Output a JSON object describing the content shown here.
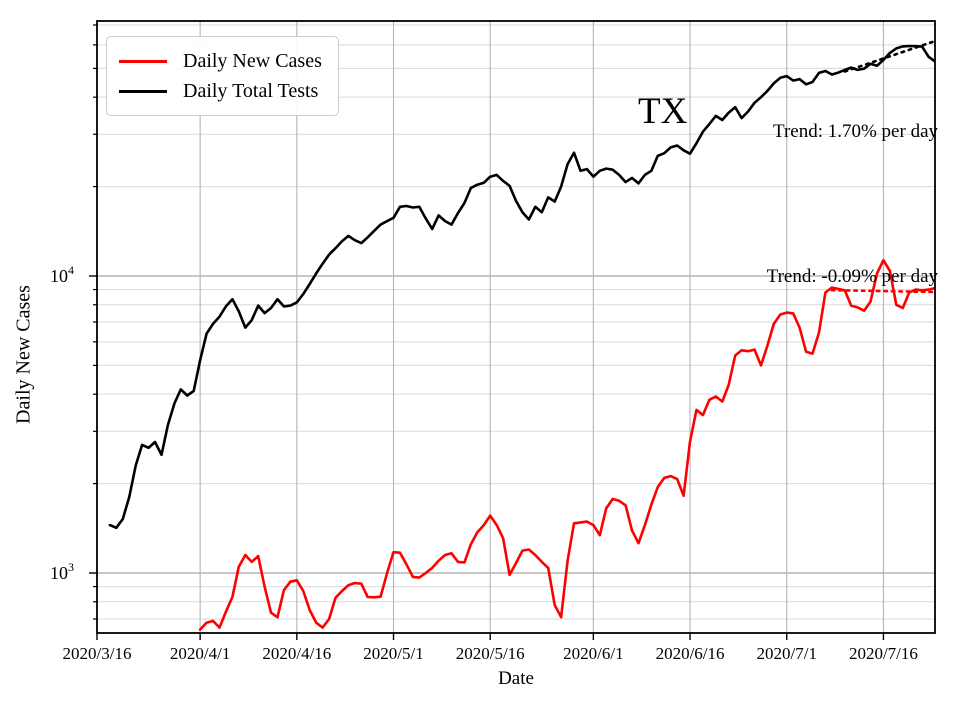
{
  "annotations": {
    "state_label": "TX",
    "tests_trend_label": "Trend: 1.70% per day",
    "cases_trend_label": "Trend: -0.09% per day"
  },
  "chart_data": {
    "type": "line",
    "title": "",
    "xlabel": "Date",
    "ylabel": "Daily New Cases",
    "grid": true,
    "legend_position": "upper left",
    "x_axis": {
      "min": "2020/3/16",
      "max": "2020/7/24",
      "ticks": [
        "2020/3/16",
        "2020/4/1",
        "2020/4/16",
        "2020/5/1",
        "2020/5/16",
        "2020/6/1",
        "2020/6/16",
        "2020/7/1",
        "2020/7/16"
      ]
    },
    "y_axis": {
      "scale": "log",
      "min": 628,
      "max": 72200,
      "major_ticks": [
        {
          "value": 1000,
          "base": "10",
          "exp": "3"
        },
        {
          "value": 10000,
          "base": "10",
          "exp": "4"
        }
      ]
    },
    "series": [
      {
        "name": "Daily New Cases",
        "color": "#ff0000",
        "line_style": "solid",
        "points": [
          [
            "2020/4/1",
            645
          ],
          [
            "2020/4/2",
            680
          ],
          [
            "2020/4/3",
            690
          ],
          [
            "2020/4/4",
            655
          ],
          [
            "2020/4/5",
            740
          ],
          [
            "2020/4/6",
            830
          ],
          [
            "2020/4/7",
            1050
          ],
          [
            "2020/4/8",
            1150
          ],
          [
            "2020/4/9",
            1090
          ],
          [
            "2020/4/10",
            1140
          ],
          [
            "2020/4/11",
            900
          ],
          [
            "2020/4/12",
            735
          ],
          [
            "2020/4/13",
            710
          ],
          [
            "2020/4/14",
            875
          ],
          [
            "2020/4/15",
            935
          ],
          [
            "2020/4/16",
            945
          ],
          [
            "2020/4/17",
            870
          ],
          [
            "2020/4/18",
            750
          ],
          [
            "2020/4/19",
            680
          ],
          [
            "2020/4/20",
            655
          ],
          [
            "2020/4/21",
            700
          ],
          [
            "2020/4/22",
            825
          ],
          [
            "2020/4/23",
            870
          ],
          [
            "2020/4/24",
            910
          ],
          [
            "2020/4/25",
            925
          ],
          [
            "2020/4/26",
            920
          ],
          [
            "2020/4/27",
            830
          ],
          [
            "2020/4/28",
            828
          ],
          [
            "2020/4/29",
            832
          ],
          [
            "2020/4/30",
            1000
          ],
          [
            "2020/5/1",
            1175
          ],
          [
            "2020/5/2",
            1170
          ],
          [
            "2020/5/3",
            1070
          ],
          [
            "2020/5/4",
            970
          ],
          [
            "2020/5/5",
            965
          ],
          [
            "2020/5/6",
            1000
          ],
          [
            "2020/5/7",
            1040
          ],
          [
            "2020/5/8",
            1100
          ],
          [
            "2020/5/9",
            1150
          ],
          [
            "2020/5/10",
            1165
          ],
          [
            "2020/5/11",
            1090
          ],
          [
            "2020/5/12",
            1085
          ],
          [
            "2020/5/13",
            1250
          ],
          [
            "2020/5/14",
            1370
          ],
          [
            "2020/5/15",
            1450
          ],
          [
            "2020/5/16",
            1560
          ],
          [
            "2020/5/17",
            1450
          ],
          [
            "2020/5/18",
            1310
          ],
          [
            "2020/5/19",
            985
          ],
          [
            "2020/5/20",
            1080
          ],
          [
            "2020/5/21",
            1190
          ],
          [
            "2020/5/22",
            1200
          ],
          [
            "2020/5/23",
            1150
          ],
          [
            "2020/5/24",
            1090
          ],
          [
            "2020/5/25",
            1040
          ],
          [
            "2020/5/26",
            780
          ],
          [
            "2020/5/27",
            710
          ],
          [
            "2020/5/28",
            1100
          ],
          [
            "2020/5/29",
            1470
          ],
          [
            "2020/5/30",
            1480
          ],
          [
            "2020/5/31",
            1490
          ],
          [
            "2020/6/1",
            1450
          ],
          [
            "2020/6/2",
            1340
          ],
          [
            "2020/6/3",
            1650
          ],
          [
            "2020/6/4",
            1775
          ],
          [
            "2020/6/5",
            1750
          ],
          [
            "2020/6/6",
            1690
          ],
          [
            "2020/6/7",
            1390
          ],
          [
            "2020/6/8",
            1260
          ],
          [
            "2020/6/9",
            1450
          ],
          [
            "2020/6/10",
            1700
          ],
          [
            "2020/6/11",
            1950
          ],
          [
            "2020/6/12",
            2090
          ],
          [
            "2020/6/13",
            2120
          ],
          [
            "2020/6/14",
            2070
          ],
          [
            "2020/6/15",
            1820
          ],
          [
            "2020/6/16",
            2770
          ],
          [
            "2020/6/17",
            3540
          ],
          [
            "2020/6/18",
            3400
          ],
          [
            "2020/6/19",
            3830
          ],
          [
            "2020/6/20",
            3930
          ],
          [
            "2020/6/21",
            3780
          ],
          [
            "2020/6/22",
            4300
          ],
          [
            "2020/6/23",
            5400
          ],
          [
            "2020/6/24",
            5620
          ],
          [
            "2020/6/25",
            5580
          ],
          [
            "2020/6/26",
            5650
          ],
          [
            "2020/6/27",
            5000
          ],
          [
            "2020/6/28",
            5830
          ],
          [
            "2020/6/29",
            6900
          ],
          [
            "2020/6/30",
            7420
          ],
          [
            "2020/7/1",
            7530
          ],
          [
            "2020/7/2",
            7480
          ],
          [
            "2020/7/3",
            6700
          ],
          [
            "2020/7/4",
            5560
          ],
          [
            "2020/7/5",
            5480
          ],
          [
            "2020/7/6",
            6450
          ],
          [
            "2020/7/7",
            8800
          ],
          [
            "2020/7/8",
            9140
          ],
          [
            "2020/7/9",
            9050
          ],
          [
            "2020/7/10",
            8940
          ],
          [
            "2020/7/11",
            7950
          ],
          [
            "2020/7/12",
            7840
          ],
          [
            "2020/7/13",
            7640
          ],
          [
            "2020/7/14",
            8200
          ],
          [
            "2020/7/15",
            10200
          ],
          [
            "2020/7/16",
            11300
          ],
          [
            "2020/7/17",
            10400
          ],
          [
            "2020/7/18",
            8000
          ],
          [
            "2020/7/19",
            7800
          ],
          [
            "2020/7/20",
            8800
          ],
          [
            "2020/7/21",
            9000
          ],
          [
            "2020/7/22",
            8950
          ],
          [
            "2020/7/23",
            9000
          ],
          [
            "2020/7/24",
            9100
          ]
        ]
      },
      {
        "name": "Daily Total Tests",
        "color": "#000000",
        "line_style": "solid",
        "points": [
          [
            "2020/3/18",
            1450
          ],
          [
            "2020/3/19",
            1420
          ],
          [
            "2020/3/20",
            1520
          ],
          [
            "2020/3/21",
            1800
          ],
          [
            "2020/3/22",
            2300
          ],
          [
            "2020/3/23",
            2700
          ],
          [
            "2020/3/24",
            2640
          ],
          [
            "2020/3/25",
            2760
          ],
          [
            "2020/3/26",
            2500
          ],
          [
            "2020/3/27",
            3150
          ],
          [
            "2020/3/28",
            3720
          ],
          [
            "2020/3/29",
            4150
          ],
          [
            "2020/3/30",
            3960
          ],
          [
            "2020/3/31",
            4100
          ],
          [
            "2020/4/1",
            5200
          ],
          [
            "2020/4/2",
            6400
          ],
          [
            "2020/4/3",
            6900
          ],
          [
            "2020/4/4",
            7300
          ],
          [
            "2020/4/5",
            7900
          ],
          [
            "2020/4/6",
            8350
          ],
          [
            "2020/4/7",
            7600
          ],
          [
            "2020/4/8",
            6700
          ],
          [
            "2020/4/9",
            7100
          ],
          [
            "2020/4/10",
            7950
          ],
          [
            "2020/4/11",
            7500
          ],
          [
            "2020/4/12",
            7800
          ],
          [
            "2020/4/13",
            8350
          ],
          [
            "2020/4/14",
            7900
          ],
          [
            "2020/4/15",
            7950
          ],
          [
            "2020/4/16",
            8150
          ],
          [
            "2020/4/17",
            8700
          ],
          [
            "2020/4/18",
            9400
          ],
          [
            "2020/4/19",
            10200
          ],
          [
            "2020/4/20",
            11000
          ],
          [
            "2020/4/21",
            11800
          ],
          [
            "2020/4/22",
            12400
          ],
          [
            "2020/4/23",
            13100
          ],
          [
            "2020/4/24",
            13650
          ],
          [
            "2020/4/25",
            13200
          ],
          [
            "2020/4/26",
            12900
          ],
          [
            "2020/4/27",
            13500
          ],
          [
            "2020/4/28",
            14200
          ],
          [
            "2020/4/29",
            14900
          ],
          [
            "2020/4/30",
            15300
          ],
          [
            "2020/5/1",
            15700
          ],
          [
            "2020/5/2",
            17100
          ],
          [
            "2020/5/3",
            17200
          ],
          [
            "2020/5/4",
            17000
          ],
          [
            "2020/5/5",
            17100
          ],
          [
            "2020/5/6",
            15600
          ],
          [
            "2020/5/7",
            14400
          ],
          [
            "2020/5/8",
            16000
          ],
          [
            "2020/5/9",
            15300
          ],
          [
            "2020/5/10",
            14900
          ],
          [
            "2020/5/11",
            16300
          ],
          [
            "2020/5/12",
            17600
          ],
          [
            "2020/5/13",
            19800
          ],
          [
            "2020/5/14",
            20300
          ],
          [
            "2020/5/15",
            20600
          ],
          [
            "2020/5/16",
            21600
          ],
          [
            "2020/5/17",
            21900
          ],
          [
            "2020/5/18",
            20900
          ],
          [
            "2020/5/19",
            20100
          ],
          [
            "2020/5/20",
            17900
          ],
          [
            "2020/5/21",
            16400
          ],
          [
            "2020/5/22",
            15500
          ],
          [
            "2020/5/23",
            17100
          ],
          [
            "2020/5/24",
            16400
          ],
          [
            "2020/5/25",
            18400
          ],
          [
            "2020/5/26",
            17800
          ],
          [
            "2020/5/27",
            20000
          ],
          [
            "2020/5/28",
            23800
          ],
          [
            "2020/5/29",
            26000
          ],
          [
            "2020/5/30",
            22600
          ],
          [
            "2020/5/31",
            22900
          ],
          [
            "2020/6/1",
            21600
          ],
          [
            "2020/6/2",
            22600
          ],
          [
            "2020/6/3",
            23000
          ],
          [
            "2020/6/4",
            22800
          ],
          [
            "2020/6/5",
            21900
          ],
          [
            "2020/6/6",
            20700
          ],
          [
            "2020/6/7",
            21400
          ],
          [
            "2020/6/8",
            20500
          ],
          [
            "2020/6/9",
            21900
          ],
          [
            "2020/6/10",
            22600
          ],
          [
            "2020/6/11",
            25400
          ],
          [
            "2020/6/12",
            25900
          ],
          [
            "2020/6/13",
            27100
          ],
          [
            "2020/6/14",
            27500
          ],
          [
            "2020/6/15",
            26500
          ],
          [
            "2020/6/16",
            25800
          ],
          [
            "2020/6/17",
            28000
          ],
          [
            "2020/6/18",
            30600
          ],
          [
            "2020/6/19",
            32500
          ],
          [
            "2020/6/20",
            34600
          ],
          [
            "2020/6/21",
            33500
          ],
          [
            "2020/6/22",
            35500
          ],
          [
            "2020/6/23",
            37000
          ],
          [
            "2020/6/24",
            34000
          ],
          [
            "2020/6/25",
            35800
          ],
          [
            "2020/6/26",
            38300
          ],
          [
            "2020/6/27",
            40000
          ],
          [
            "2020/6/28",
            42000
          ],
          [
            "2020/6/29",
            44500
          ],
          [
            "2020/6/30",
            46500
          ],
          [
            "2020/7/1",
            47100
          ],
          [
            "2020/7/2",
            45500
          ],
          [
            "2020/7/3",
            46000
          ],
          [
            "2020/7/4",
            44200
          ],
          [
            "2020/7/5",
            45000
          ],
          [
            "2020/7/6",
            48300
          ],
          [
            "2020/7/7",
            49000
          ],
          [
            "2020/7/8",
            47700
          ],
          [
            "2020/7/9",
            48400
          ],
          [
            "2020/7/10",
            49400
          ],
          [
            "2020/7/11",
            50300
          ],
          [
            "2020/7/12",
            49400
          ],
          [
            "2020/7/13",
            49900
          ],
          [
            "2020/7/14",
            51800
          ],
          [
            "2020/7/15",
            51000
          ],
          [
            "2020/7/16",
            53400
          ],
          [
            "2020/7/17",
            56400
          ],
          [
            "2020/7/18",
            58400
          ],
          [
            "2020/7/19",
            59300
          ],
          [
            "2020/7/20",
            59500
          ],
          [
            "2020/7/21",
            59400
          ],
          [
            "2020/7/22",
            59200
          ],
          [
            "2020/7/23",
            54700
          ],
          [
            "2020/7/24",
            52800
          ]
        ]
      },
      {
        "name": "Tests trend (1.70% per day)",
        "color": "#000000",
        "line_style": "dotted",
        "points": [
          [
            "2020/7/10",
            48800
          ],
          [
            "2020/7/24",
            61800
          ]
        ]
      },
      {
        "name": "Cases trend (-0.09% per day)",
        "color": "#ff0000",
        "line_style": "dotted",
        "points": [
          [
            "2020/7/8",
            8960
          ],
          [
            "2020/7/24",
            8830
          ]
        ]
      }
    ]
  }
}
